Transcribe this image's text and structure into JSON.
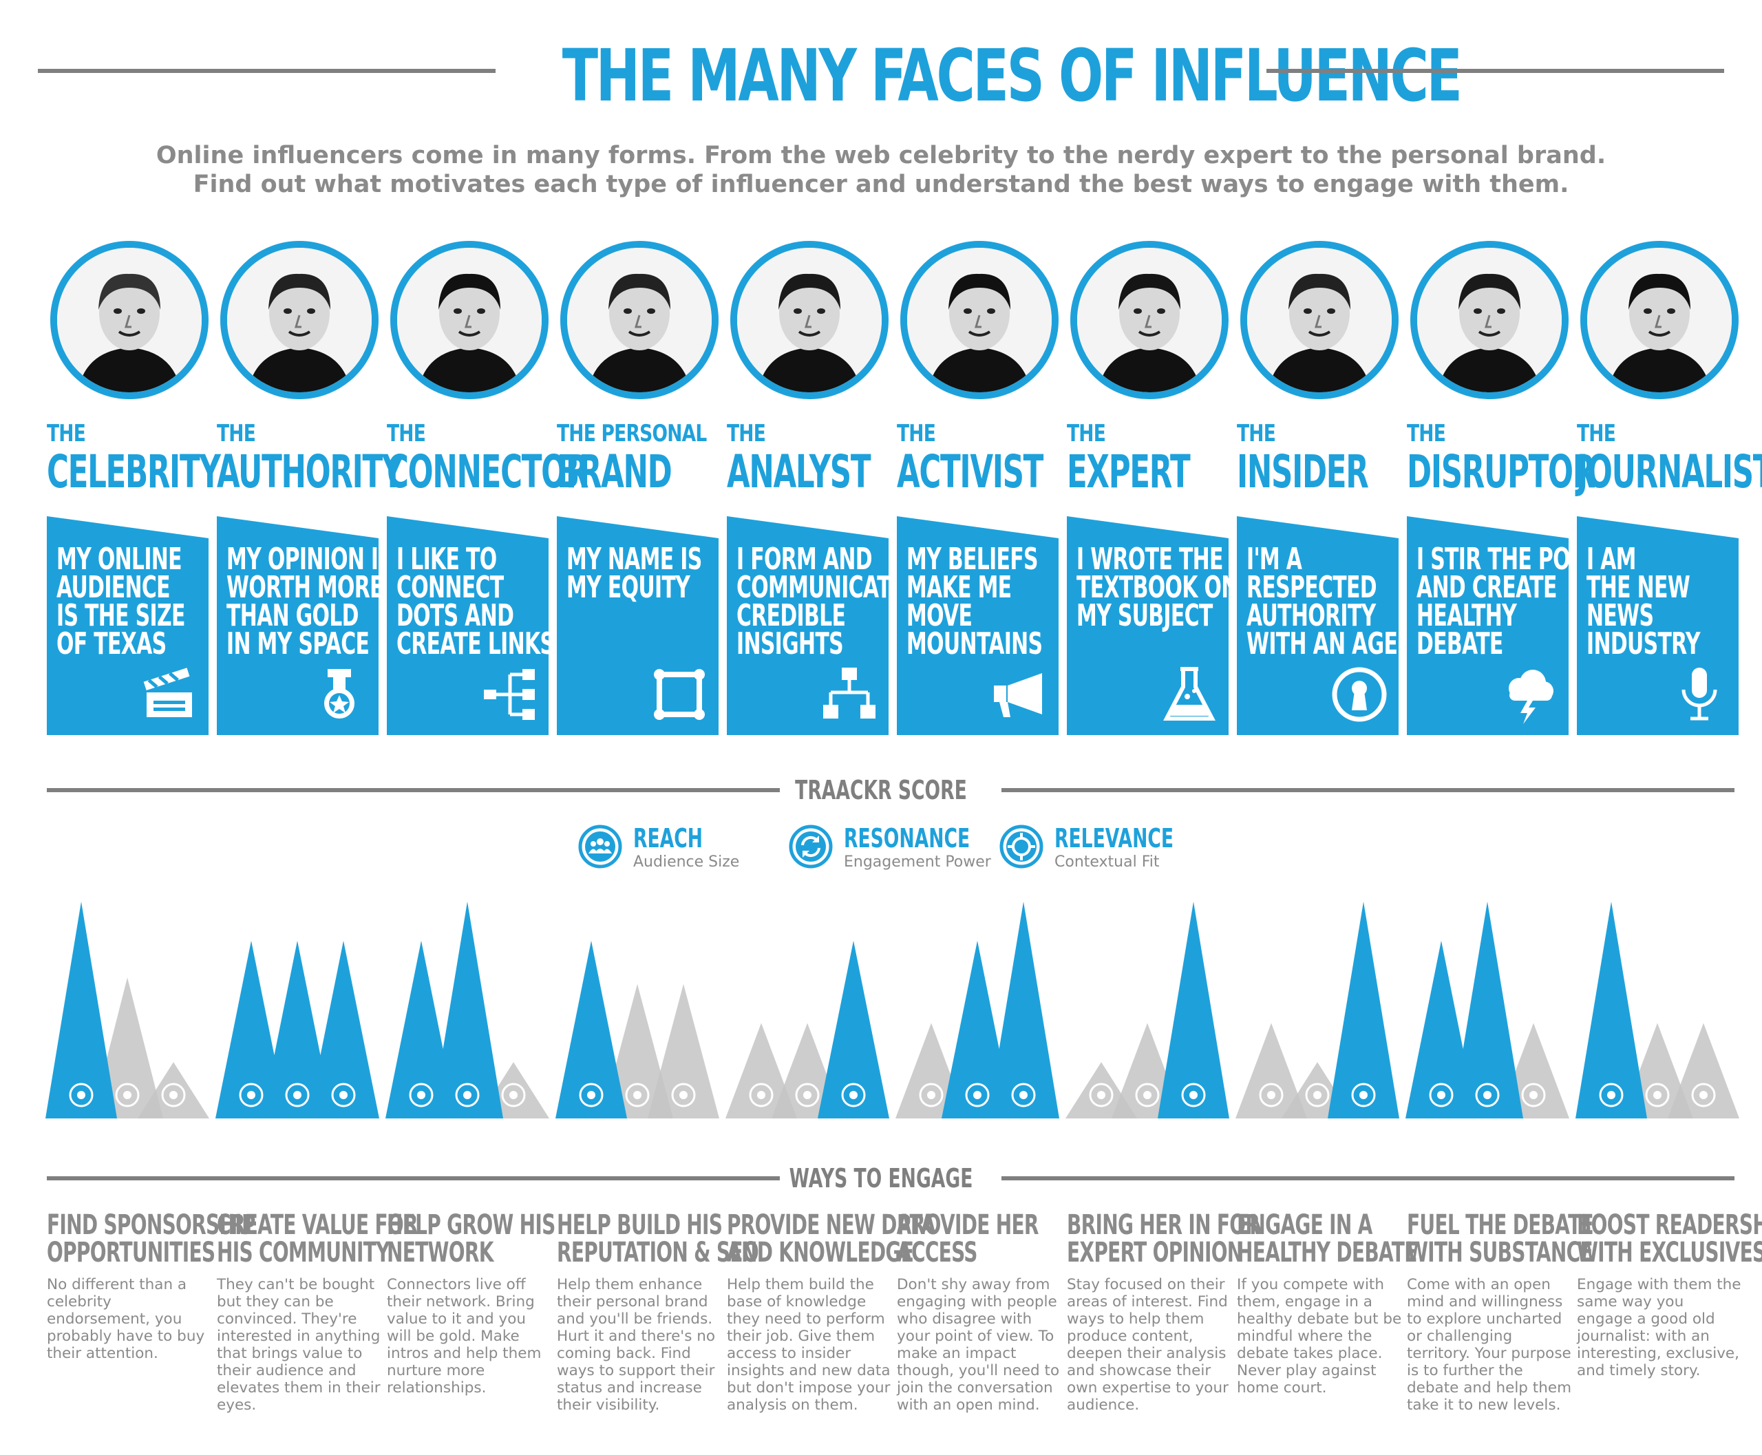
{
  "title": "THE MANY FACES OF INFLUENCE",
  "subtitle": {
    "line1": "Online influencers come in many forms. From the web celebrity to the nerdy expert to the personal brand.",
    "line2": "Find out what motivates each type of influencer and understand the best ways to engage with them."
  },
  "colors": {
    "accent": "#1ea1db",
    "gray": "#8a8a8a",
    "light_gray": "#c8c8c8"
  },
  "sections": {
    "score": "TRAACKR SCORE",
    "engage": "WAYS TO ENGAGE"
  },
  "legend": [
    {
      "title": "REACH",
      "sub": "Audience Size",
      "icon": "people-icon"
    },
    {
      "title": "RESONANCE",
      "sub": "Engagement Power",
      "icon": "refresh-arrows-icon"
    },
    {
      "title": "RELEVANCE",
      "sub": "Contextual Fit",
      "icon": "target-icon"
    }
  ],
  "influencers": [
    {
      "small": "THE",
      "big": "CELEBRITY",
      "quote": [
        "MY ONLINE",
        "AUDIENCE",
        "IS THE SIZE",
        "OF TEXAS"
      ],
      "icon": "clapperboard-icon",
      "engage_title": [
        "FIND SPONSORSHIP",
        "OPPORTUNITIES"
      ],
      "engage_text": "No different than a celebrity endorsement, you probably have to buy their attention."
    },
    {
      "small": "THE",
      "big": "AUTHORITY",
      "quote": [
        "MY OPINION IS",
        "WORTH MORE",
        "THAN GOLD",
        "IN MY SPACE"
      ],
      "icon": "medal-icon",
      "engage_title": [
        "CREATE VALUE FOR",
        "HIS COMMUNITY"
      ],
      "engage_text": "They can't be bought but they can be convinced. They're interested in anything that brings value to their audience and elevates them in their eyes."
    },
    {
      "small": "THE",
      "big": "CONNECTOR",
      "quote": [
        "I LIKE TO",
        "CONNECT",
        "DOTS AND",
        "CREATE LINKS"
      ],
      "icon": "network-icon",
      "engage_title": [
        "HELP GROW HIS",
        "NETWORK"
      ],
      "engage_text": "Connectors live off their network. Bring value to it and you will be gold. Make intros and help them nurture more relationships."
    },
    {
      "small": "THE PERSONAL",
      "big": "BRAND",
      "quote": [
        "MY NAME IS",
        "MY EQUITY"
      ],
      "icon": "frame-icon",
      "engage_title": [
        "HELP BUILD HIS",
        "REPUTATION & SEO"
      ],
      "engage_text": "Help them enhance their personal brand and you'll be friends. Hurt it and there's no coming back. Find ways to support their status and increase their visibility."
    },
    {
      "small": "THE",
      "big": "ANALYST",
      "quote": [
        "I FORM AND",
        "COMMUNICATE",
        "CREDIBLE",
        "INSIGHTS"
      ],
      "icon": "flowchart-icon",
      "engage_title": [
        "PROVIDE NEW DATA",
        "AND KNOWLEDGE"
      ],
      "engage_text": "Help them build the base of knowledge they need to perform their job. Give them access to insider insights and new data but don't impose your analysis on them."
    },
    {
      "small": "THE",
      "big": "ACTIVIST",
      "quote": [
        "MY BELIEFS",
        "MAKE ME",
        "MOVE",
        "MOUNTAINS"
      ],
      "icon": "megaphone-icon",
      "engage_title": [
        "PROVIDE HER",
        "ACCESS"
      ],
      "engage_text": "Don't shy away from engaging with people who disagree with your point of view. To make an impact though, you'll need to join the conversation with an open mind."
    },
    {
      "small": "THE",
      "big": "EXPERT",
      "quote": [
        "I WROTE THE",
        "TEXTBOOK ON",
        "MY SUBJECT"
      ],
      "icon": "flask-icon",
      "engage_title": [
        "BRING HER IN FOR",
        "EXPERT OPINION"
      ],
      "engage_text": "Stay focused on their areas of interest. Find ways to help them produce content, deepen their analysis and showcase their own expertise to your audience."
    },
    {
      "small": "THE",
      "big": "INSIDER",
      "quote": [
        "I'M A",
        "RESPECTED",
        "AUTHORITY",
        "WITH AN AGENDA"
      ],
      "icon": "keyhole-icon",
      "engage_title": [
        "ENGAGE IN A",
        "HEALTHY DEBATE"
      ],
      "engage_text": "If you compete with them, engage in a healthy debate but be mindful where the debate takes place. Never  play against home court."
    },
    {
      "small": "THE",
      "big": "DISRUPTOR",
      "quote": [
        "I STIR THE POT",
        "AND CREATE",
        "HEALTHY",
        "DEBATE"
      ],
      "icon": "storm-cloud-icon",
      "engage_title": [
        "FUEL THE DEBATE",
        "WITH SUBSTANCE"
      ],
      "engage_text": "Come with an open mind and willingness to explore uncharted or challenging territory. Your purpose is to further the debate and help them take it to new levels."
    },
    {
      "small": "THE",
      "big": "JOURNALIST",
      "quote": [
        "I AM",
        "THE NEW",
        "NEWS",
        "INDUSTRY"
      ],
      "icon": "microphone-icon",
      "engage_title": [
        "BOOST READERSHIP",
        "WITH EXCLUSIVES"
      ],
      "engage_text": "Engage with them the same way you engage a good old journalist: with an interesting, exclusive, and timely story."
    }
  ],
  "scores": [
    {
      "reach": 1.0,
      "resonance": 0.65,
      "relevance": 0.26,
      "hl": [
        true,
        false,
        false
      ]
    },
    {
      "reach": 0.82,
      "resonance": 0.82,
      "relevance": 0.82,
      "hl": [
        true,
        true,
        true
      ]
    },
    {
      "reach": 0.82,
      "resonance": 1.0,
      "relevance": 0.26,
      "hl": [
        true,
        true,
        false
      ]
    },
    {
      "reach": 0.82,
      "resonance": 0.62,
      "relevance": 0.62,
      "hl": [
        true,
        false,
        false
      ]
    },
    {
      "reach": 0.44,
      "resonance": 0.44,
      "relevance": 0.82,
      "hl": [
        false,
        false,
        true
      ]
    },
    {
      "reach": 0.44,
      "resonance": 0.82,
      "relevance": 1.0,
      "hl": [
        false,
        true,
        true
      ]
    },
    {
      "reach": 0.26,
      "resonance": 0.44,
      "relevance": 1.0,
      "hl": [
        false,
        false,
        true
      ]
    },
    {
      "reach": 0.44,
      "resonance": 0.26,
      "relevance": 1.0,
      "hl": [
        false,
        false,
        true
      ]
    },
    {
      "reach": 0.82,
      "resonance": 1.0,
      "relevance": 0.44,
      "hl": [
        true,
        true,
        false
      ]
    },
    {
      "reach": 1.0,
      "resonance": 0.44,
      "relevance": 0.44,
      "hl": [
        true,
        false,
        false
      ]
    }
  ]
}
